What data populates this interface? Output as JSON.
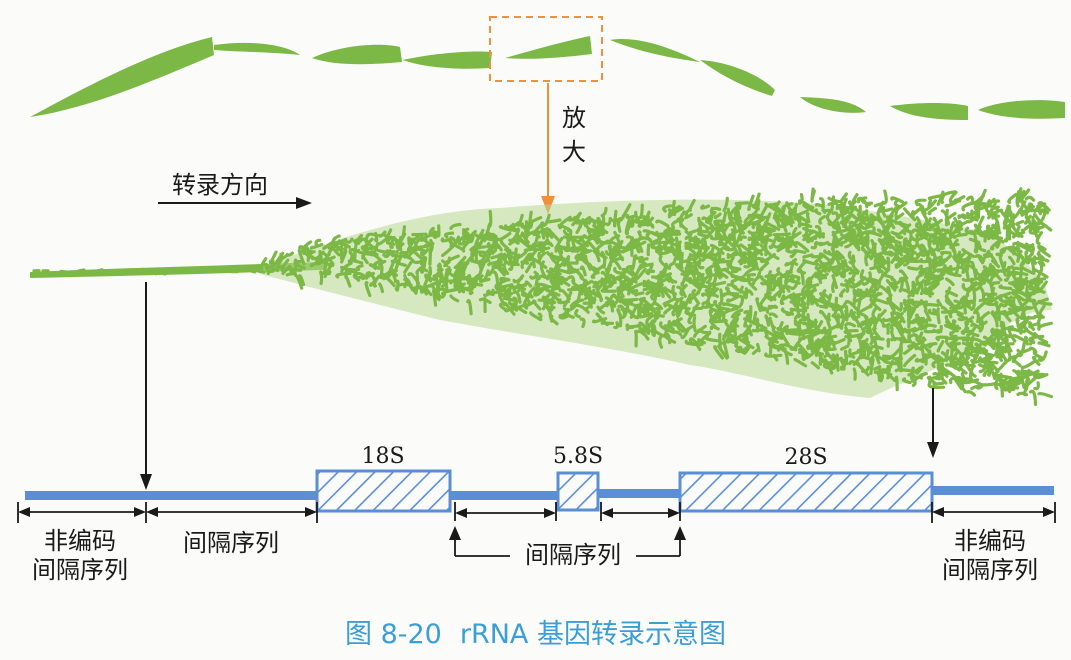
{
  "labels": {
    "zoom": [
      "放",
      "大"
    ],
    "direction": "转录方向",
    "s18": "18S",
    "s58": "5.8S",
    "s28": "28S",
    "ncs": [
      "非编码",
      "间隔序列"
    ],
    "spacer": "间隔序列",
    "spacer_bottom": "间隔序列"
  },
  "caption": {
    "figure_number": "图 8-20",
    "title": "rRNA 基因转录示意图"
  },
  "colors": {
    "green": "#7cb845",
    "blue": "#5a8fd6",
    "orange": "#f0903a",
    "caption": "#3a9fd6"
  }
}
